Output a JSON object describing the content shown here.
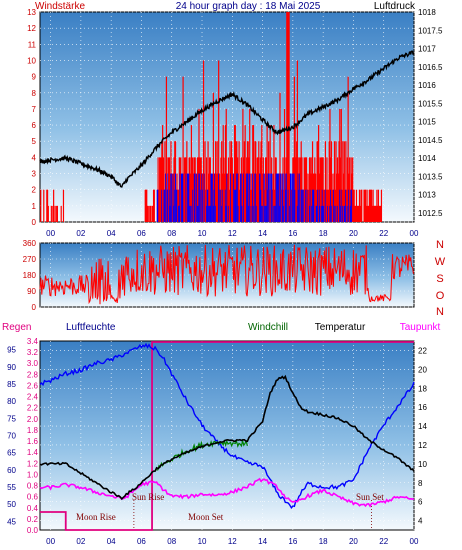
{
  "header": {
    "title": "24 hour graph day : 18 Mai 2025",
    "left_label": "Windstärke",
    "right_label": "Luftdruck"
  },
  "chart_data": [
    {
      "type": "bar",
      "panel": "wind-speed-and-pressure",
      "y_left": {
        "label": "Windstärke",
        "ticks": [
          0,
          1,
          2,
          3,
          4,
          5,
          6,
          7,
          8,
          9,
          10,
          11,
          12,
          13
        ],
        "ylim": [
          0,
          13
        ]
      },
      "y_right": {
        "label": "Luftdruck",
        "ticks": [
          1012.5,
          1013,
          1013.5,
          1014,
          1014.5,
          1015,
          1015.5,
          1016,
          1016.5,
          1017,
          1017.5,
          1018
        ],
        "ylim": [
          1012.25,
          1018
        ]
      },
      "x": {
        "ticks": [
          "00",
          "02",
          "04",
          "06",
          "08",
          "10",
          "12",
          "14",
          "16",
          "18",
          "20",
          "22",
          "00"
        ],
        "xlim": [
          -0.7,
          24
        ]
      },
      "colors": {
        "gust": "#ff0000",
        "speed": "#0000ff",
        "pressure": "#000000"
      },
      "series": [
        {
          "series_key": "pressure",
          "x": [
            -0.7,
            0,
            1,
            2,
            3,
            4,
            4.7,
            5,
            6,
            7,
            8,
            9,
            10,
            11,
            12,
            13,
            14,
            14.5,
            15,
            16,
            17,
            18,
            19,
            20,
            21,
            22,
            23,
            24
          ],
          "values": [
            1013.9,
            1013.95,
            1014.0,
            1013.85,
            1013.7,
            1013.5,
            1013.2,
            1013.4,
            1013.8,
            1014.3,
            1014.7,
            1015.0,
            1015.3,
            1015.55,
            1015.75,
            1015.45,
            1015.05,
            1014.85,
            1014.7,
            1014.85,
            1015.2,
            1015.4,
            1015.6,
            1015.9,
            1016.15,
            1016.45,
            1016.75,
            1016.9
          ]
        }
      ]
    },
    {
      "type": "scatter",
      "panel": "wind-direction",
      "y_left": {
        "ticks": [
          0,
          90,
          180,
          270,
          360
        ],
        "ylim": [
          0,
          360
        ]
      },
      "y_right": {
        "ticks": [
          "N",
          "W",
          "S",
          "O",
          "N"
        ]
      },
      "x": {
        "xlim": [
          -0.7,
          24
        ]
      },
      "colors": {
        "direction": "#ff0000"
      }
    },
    {
      "type": "line",
      "panel": "weather",
      "labels": {
        "regen": "Regen",
        "humidity": "Luftfeuchte",
        "windchill": "Windchill",
        "temperature": "Temperatur",
        "dewpoint": "Taupunkt"
      },
      "y_rain": {
        "ticks": [
          0,
          0.2,
          0.4,
          0.6,
          0.8,
          1,
          1.2,
          1.4,
          1.6,
          1.8,
          2,
          2.2,
          2.4,
          2.6,
          2.8,
          3,
          3.2,
          3.4
        ],
        "ylim": [
          0,
          3.4
        ]
      },
      "y_humidity": {
        "ticks": [
          45,
          50,
          55,
          60,
          65,
          70,
          75,
          80,
          85,
          90,
          95
        ],
        "ylim": [
          42.5,
          97.5
        ]
      },
      "y_temp": {
        "ticks": [
          4,
          6,
          8,
          10,
          12,
          14,
          16,
          18,
          20,
          22
        ],
        "ylim": [
          3,
          23
        ]
      },
      "x": {
        "ticks": [
          "00",
          "02",
          "04",
          "06",
          "08",
          "10",
          "12",
          "14",
          "16",
          "18",
          "20",
          "22",
          "00"
        ],
        "xlim": [
          -0.7,
          24
        ]
      },
      "colors": {
        "regen": "#e0007f",
        "humidity": "#0000ff",
        "windchill": "#008000",
        "temperature": "#000000",
        "dewpoint": "#ff00ff"
      },
      "annotations": {
        "sun_rise": "Sun Rise",
        "moon_rise": "Moon Rise",
        "moon_set": "Moon Set",
        "sun_set": "Sun Set"
      },
      "series": [
        {
          "series_key": "humidity",
          "x": [
            -0.7,
            0,
            1,
            2,
            3,
            4,
            5,
            5.5,
            6,
            6.5,
            7,
            7.5,
            8,
            9,
            10,
            11,
            12,
            13,
            14,
            14.5,
            15,
            15.5,
            16,
            16.5,
            17,
            18,
            19,
            20,
            21,
            22,
            23,
            24
          ],
          "values": [
            85,
            86,
            88,
            89,
            91,
            92,
            94,
            95,
            96,
            96,
            95,
            92,
            88,
            80,
            73,
            68,
            64,
            62,
            61,
            57,
            53,
            51,
            49,
            53,
            56,
            55,
            55,
            57,
            66,
            73,
            79,
            85
          ]
        },
        {
          "series_key": "temperature",
          "x": [
            -0.7,
            0,
            1,
            2,
            3,
            4,
            4.7,
            5,
            5.5,
            6,
            7,
            8,
            9,
            10,
            11,
            12,
            13,
            14,
            14.5,
            15,
            15.5,
            16,
            16.5,
            17,
            18,
            19,
            20,
            21,
            22,
            23,
            24
          ],
          "values": [
            10,
            10,
            10,
            9,
            8,
            7,
            6.4,
            6.8,
            7.3,
            8,
            9.5,
            10.5,
            11.2,
            11.8,
            12.3,
            12.5,
            12.5,
            14.5,
            17.5,
            19,
            19.2,
            17.5,
            16,
            15.5,
            15.2,
            14.8,
            14,
            12.5,
            11.5,
            10.5,
            9.2
          ]
        },
        {
          "series_key": "windchill",
          "x": [
            7,
            8,
            9,
            10,
            11,
            12,
            13
          ],
          "values": [
            9.5,
            10.5,
            11.4,
            12,
            12.3,
            12.2,
            12.1
          ]
        },
        {
          "series_key": "dewpoint",
          "x": [
            -0.7,
            0,
            1,
            2,
            3,
            4,
            4.7,
            5,
            6,
            6.5,
            7,
            7.5,
            8,
            9,
            10,
            11,
            12,
            13,
            14,
            14.5,
            15,
            15.5,
            16,
            17,
            18,
            19,
            20,
            21,
            22,
            23,
            24
          ],
          "values": [
            7.5,
            7.5,
            7.8,
            7.5,
            7,
            6.6,
            6.3,
            6.5,
            7.8,
            8,
            8,
            7.2,
            6.6,
            6.5,
            6.8,
            6.7,
            7,
            7.6,
            8.4,
            8,
            7.5,
            6.5,
            5.8,
            6.6,
            7.2,
            6.5,
            5.8,
            5.6,
            6,
            6.5,
            6.2
          ]
        }
      ]
    }
  ]
}
